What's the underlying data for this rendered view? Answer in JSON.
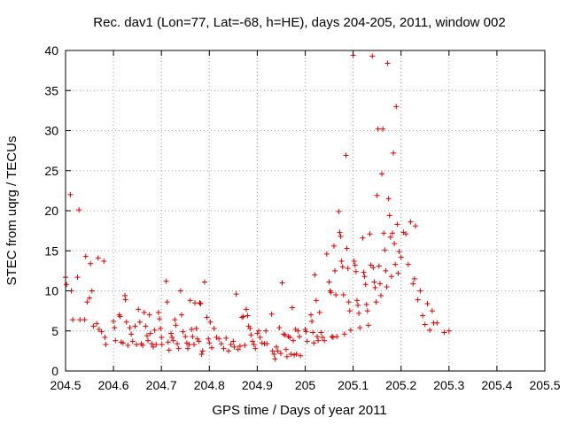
{
  "chart_data": {
    "type": "scatter",
    "title": "Rec. dav1 (Lon=77, Lat=-68, h=HE), days 204-205, 2011, window 002",
    "xlabel": "GPS time / Days of year 2011",
    "ylabel": "STEC from uqrg / TECUs",
    "xlim": [
      204.5,
      205.5
    ],
    "ylim": [
      0,
      40
    ],
    "grid": true,
    "x_ticks": [
      204.5,
      204.6,
      204.7,
      204.8,
      204.9,
      205,
      205.1,
      205.2,
      205.3,
      205.4,
      205.5
    ],
    "x_tick_labels": [
      "204.5",
      "204.6",
      "204.7",
      "204.8",
      "204.9",
      "205",
      "205.1",
      "205.2",
      "205.3",
      "205.4",
      "205.5"
    ],
    "y_ticks": [
      0,
      5,
      10,
      15,
      20,
      25,
      30,
      35,
      40
    ],
    "y_tick_labels": [
      "0",
      "5",
      "10",
      "15",
      "20",
      "25",
      "30",
      "35",
      "40"
    ],
    "marker": "+",
    "series": [
      {
        "name": "STEC",
        "color": "#e00000",
        "points": [
          [
            204.5,
            11.7
          ],
          [
            204.502,
            10.8
          ],
          [
            204.51,
            22.0
          ],
          [
            204.512,
            10.0
          ],
          [
            204.515,
            6.4
          ],
          [
            204.525,
            11.7
          ],
          [
            204.528,
            20.1
          ],
          [
            204.53,
            6.4
          ],
          [
            204.54,
            6.4
          ],
          [
            204.542,
            14.3
          ],
          [
            204.545,
            8.6
          ],
          [
            204.55,
            9.1
          ],
          [
            204.552,
            13.4
          ],
          [
            204.555,
            10.0
          ],
          [
            204.558,
            5.6
          ],
          [
            204.565,
            5.9
          ],
          [
            204.568,
            14.1
          ],
          [
            204.57,
            5.2
          ],
          [
            204.575,
            4.9
          ],
          [
            204.58,
            13.7
          ],
          [
            204.582,
            4.2
          ],
          [
            204.584,
            3.3
          ],
          [
            204.6,
            6.2
          ],
          [
            204.602,
            5.4
          ],
          [
            204.604,
            3.8
          ],
          [
            204.612,
            7.0
          ],
          [
            204.614,
            6.8
          ],
          [
            204.616,
            3.6
          ],
          [
            204.62,
            3.5
          ],
          [
            204.624,
            9.4
          ],
          [
            204.625,
            8.9
          ],
          [
            204.627,
            6.1
          ],
          [
            204.63,
            3.2
          ],
          [
            204.634,
            5.4
          ],
          [
            204.637,
            4.6
          ],
          [
            204.64,
            3.7
          ],
          [
            204.645,
            5.6
          ],
          [
            204.648,
            3.3
          ],
          [
            204.652,
            7.7
          ],
          [
            204.655,
            6.1
          ],
          [
            204.658,
            3.4
          ],
          [
            204.661,
            3.2
          ],
          [
            204.664,
            7.3
          ],
          [
            204.667,
            5.6
          ],
          [
            204.67,
            4.4
          ],
          [
            204.672,
            3.8
          ],
          [
            204.675,
            7.0
          ],
          [
            204.677,
            4.7
          ],
          [
            204.68,
            3.4
          ],
          [
            204.683,
            3.0
          ],
          [
            204.686,
            5.1
          ],
          [
            204.689,
            3.3
          ],
          [
            204.694,
            7.3
          ],
          [
            204.696,
            6.5
          ],
          [
            204.698,
            5.3
          ],
          [
            204.7,
            4.2
          ],
          [
            204.701,
            3.3
          ],
          [
            204.71,
            11.2
          ],
          [
            204.712,
            8.6
          ],
          [
            204.714,
            3.6
          ],
          [
            204.716,
            2.6
          ],
          [
            204.72,
            4.7
          ],
          [
            204.722,
            4.2
          ],
          [
            204.725,
            3.8
          ],
          [
            204.728,
            6.4
          ],
          [
            204.73,
            5.7
          ],
          [
            204.733,
            3.4
          ],
          [
            204.736,
            2.8
          ],
          [
            204.74,
            10.0
          ],
          [
            204.742,
            7.0
          ],
          [
            204.745,
            4.9
          ],
          [
            204.75,
            4.3
          ],
          [
            204.753,
            3.5
          ],
          [
            204.755,
            2.8
          ],
          [
            204.758,
            3.3
          ],
          [
            204.76,
            8.8
          ],
          [
            204.763,
            5.2
          ],
          [
            204.765,
            4.3
          ],
          [
            204.768,
            3.3
          ],
          [
            204.77,
            8.5
          ],
          [
            204.773,
            5.3
          ],
          [
            204.775,
            4.0
          ],
          [
            204.778,
            3.7
          ],
          [
            204.78,
            8.5
          ],
          [
            204.782,
            8.4
          ],
          [
            204.784,
            2.1
          ],
          [
            204.786,
            2.5
          ],
          [
            204.79,
            11.1
          ],
          [
            204.795,
            6.7
          ],
          [
            204.798,
            4.0
          ],
          [
            204.8,
            3.5
          ],
          [
            204.802,
            6.1
          ],
          [
            204.805,
            2.9
          ],
          [
            204.81,
            5.3
          ],
          [
            204.815,
            4.2
          ],
          [
            204.82,
            4.0
          ],
          [
            204.825,
            3.4
          ],
          [
            204.83,
            2.8
          ],
          [
            204.835,
            4.1
          ],
          [
            204.84,
            2.5
          ],
          [
            204.845,
            3.3
          ],
          [
            204.85,
            3.7
          ],
          [
            204.852,
            3.0
          ],
          [
            204.856,
            9.6
          ],
          [
            204.86,
            2.7
          ],
          [
            204.864,
            3.1
          ],
          [
            204.868,
            6.7
          ],
          [
            204.871,
            6.8
          ],
          [
            204.874,
            3.2
          ],
          [
            204.877,
            7.7
          ],
          [
            204.88,
            6.9
          ],
          [
            204.882,
            5.6
          ],
          [
            204.885,
            5.3
          ],
          [
            204.887,
            4.5
          ],
          [
            204.89,
            3.7
          ],
          [
            204.893,
            3.3
          ],
          [
            204.896,
            2.8
          ],
          [
            204.9,
            4.7
          ],
          [
            204.903,
            5.0
          ],
          [
            204.906,
            4.2
          ],
          [
            204.91,
            3.5
          ],
          [
            204.915,
            3.4
          ],
          [
            204.918,
            5.0
          ],
          [
            204.92,
            3.4
          ],
          [
            204.93,
            7.1
          ],
          [
            204.932,
            2.5
          ],
          [
            204.935,
            2.1
          ],
          [
            204.937,
            1.5
          ],
          [
            204.94,
            3.0
          ],
          [
            204.943,
            2.5
          ],
          [
            204.946,
            5.4
          ],
          [
            204.949,
            2.2
          ],
          [
            204.952,
            11.0
          ],
          [
            204.955,
            4.6
          ],
          [
            204.958,
            4.5
          ],
          [
            204.96,
            2.7
          ],
          [
            204.962,
            1.8
          ],
          [
            204.965,
            4.3
          ],
          [
            204.968,
            4.2
          ],
          [
            204.97,
            2.1
          ],
          [
            204.973,
            7.9
          ],
          [
            204.975,
            3.8
          ],
          [
            204.977,
            2.0
          ],
          [
            204.98,
            5.2
          ],
          [
            204.982,
            2.1
          ],
          [
            204.985,
            5.0
          ],
          [
            204.988,
            4.3
          ],
          [
            204.99,
            1.9
          ],
          [
            205.0,
            5.2
          ],
          [
            205.002,
            4.9
          ],
          [
            205.004,
            3.7
          ],
          [
            205.012,
            7.0
          ],
          [
            205.014,
            6.2
          ],
          [
            205.016,
            4.8
          ],
          [
            205.018,
            3.5
          ],
          [
            205.02,
            12.0
          ],
          [
            205.023,
            8.8
          ],
          [
            205.025,
            4.3
          ],
          [
            205.027,
            3.8
          ],
          [
            205.03,
            7.3
          ],
          [
            205.033,
            4.8
          ],
          [
            205.036,
            4.2
          ],
          [
            205.04,
            3.8
          ],
          [
            205.045,
            14.6
          ],
          [
            205.05,
            11.1
          ],
          [
            205.052,
            10.0
          ],
          [
            205.054,
            9.8
          ],
          [
            205.056,
            4.3
          ],
          [
            205.058,
            4.2
          ],
          [
            205.06,
            15.6
          ],
          [
            205.062,
            12.5
          ],
          [
            205.064,
            9.5
          ],
          [
            205.066,
            4.3
          ],
          [
            205.07,
            19.9
          ],
          [
            205.072,
            17.3
          ],
          [
            205.074,
            16.8
          ],
          [
            205.076,
            13.7
          ],
          [
            205.078,
            13.0
          ],
          [
            205.08,
            9.5
          ],
          [
            205.082,
            4.6
          ],
          [
            205.085,
            26.9
          ],
          [
            205.087,
            15.3
          ],
          [
            205.089,
            12.8
          ],
          [
            205.091,
            8.6
          ],
          [
            205.093,
            7.5
          ],
          [
            205.095,
            5.1
          ],
          [
            205.1,
            39.4
          ],
          [
            205.102,
            13.7
          ],
          [
            205.104,
            13.2
          ],
          [
            205.106,
            12.4
          ],
          [
            205.108,
            8.8
          ],
          [
            205.11,
            8.2
          ],
          [
            205.112,
            7.2
          ],
          [
            205.114,
            5.4
          ],
          [
            205.12,
            16.6
          ],
          [
            205.122,
            12.3
          ],
          [
            205.124,
            11.8
          ],
          [
            205.126,
            10.8
          ],
          [
            205.128,
            8.3
          ],
          [
            205.13,
            7.5
          ],
          [
            205.132,
            5.7
          ],
          [
            205.135,
            17.1
          ],
          [
            205.137,
            13.2
          ],
          [
            205.14,
            39.3
          ],
          [
            205.142,
            12.9
          ],
          [
            205.144,
            11.1
          ],
          [
            205.146,
            10.4
          ],
          [
            205.148,
            8.6
          ],
          [
            205.15,
            21.9
          ],
          [
            205.152,
            30.2
          ],
          [
            205.154,
            13.1
          ],
          [
            205.156,
            10.9
          ],
          [
            205.158,
            9.4
          ],
          [
            205.16,
            24.6
          ],
          [
            205.162,
            30.2
          ],
          [
            205.164,
            17.2
          ],
          [
            205.166,
            15.1
          ],
          [
            205.168,
            12.5
          ],
          [
            205.17,
            10.5
          ],
          [
            205.172,
            38.4
          ],
          [
            205.174,
            21.5
          ],
          [
            205.176,
            19.4
          ],
          [
            205.178,
            16.7
          ],
          [
            205.18,
            11.8
          ],
          [
            205.182,
            17.2
          ],
          [
            205.184,
            27.2
          ],
          [
            205.186,
            15.9
          ],
          [
            205.188,
            13.3
          ],
          [
            205.19,
            33.0
          ],
          [
            205.192,
            18.3
          ],
          [
            205.194,
            12.2
          ],
          [
            205.196,
            14.9
          ],
          [
            205.2,
            14.2
          ],
          [
            205.205,
            17.3
          ],
          [
            205.21,
            17.1
          ],
          [
            205.215,
            13.3
          ],
          [
            205.22,
            18.6
          ],
          [
            205.225,
            10.9
          ],
          [
            205.228,
            11.5
          ],
          [
            205.23,
            18.1
          ],
          [
            205.235,
            8.9
          ],
          [
            205.24,
            10.0
          ],
          [
            205.245,
            6.9
          ],
          [
            205.25,
            5.8
          ],
          [
            205.255,
            8.4
          ],
          [
            205.26,
            5.1
          ],
          [
            205.265,
            7.5
          ],
          [
            205.268,
            6.0
          ],
          [
            205.275,
            6.0
          ],
          [
            205.29,
            4.8
          ],
          [
            205.3,
            5.0
          ]
        ]
      }
    ]
  }
}
